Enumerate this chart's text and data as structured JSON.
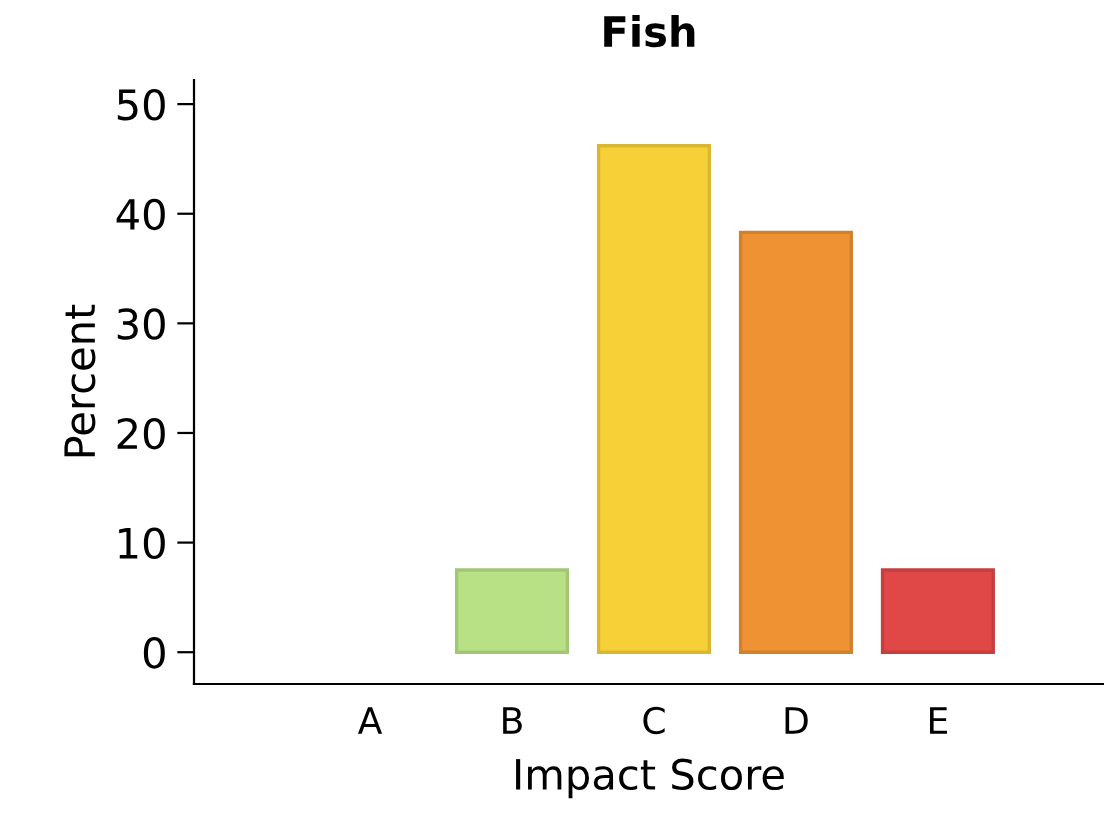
{
  "chart_data": {
    "type": "bar",
    "title": "Fish",
    "xlabel": "Impact Score",
    "ylabel": "Percent",
    "categories": [
      "A",
      "B",
      "C",
      "D",
      "E"
    ],
    "values": [
      0,
      7.5,
      46.2,
      38.3,
      7.5
    ],
    "colors": [
      "#1a9641",
      "#b8e186",
      "#f7d038",
      "#ee9234",
      "#e04848"
    ],
    "ylim": [
      -2.9,
      52.2
    ],
    "yticks": [
      0,
      10,
      20,
      30,
      40,
      50
    ],
    "grid": false,
    "legend": false
  }
}
